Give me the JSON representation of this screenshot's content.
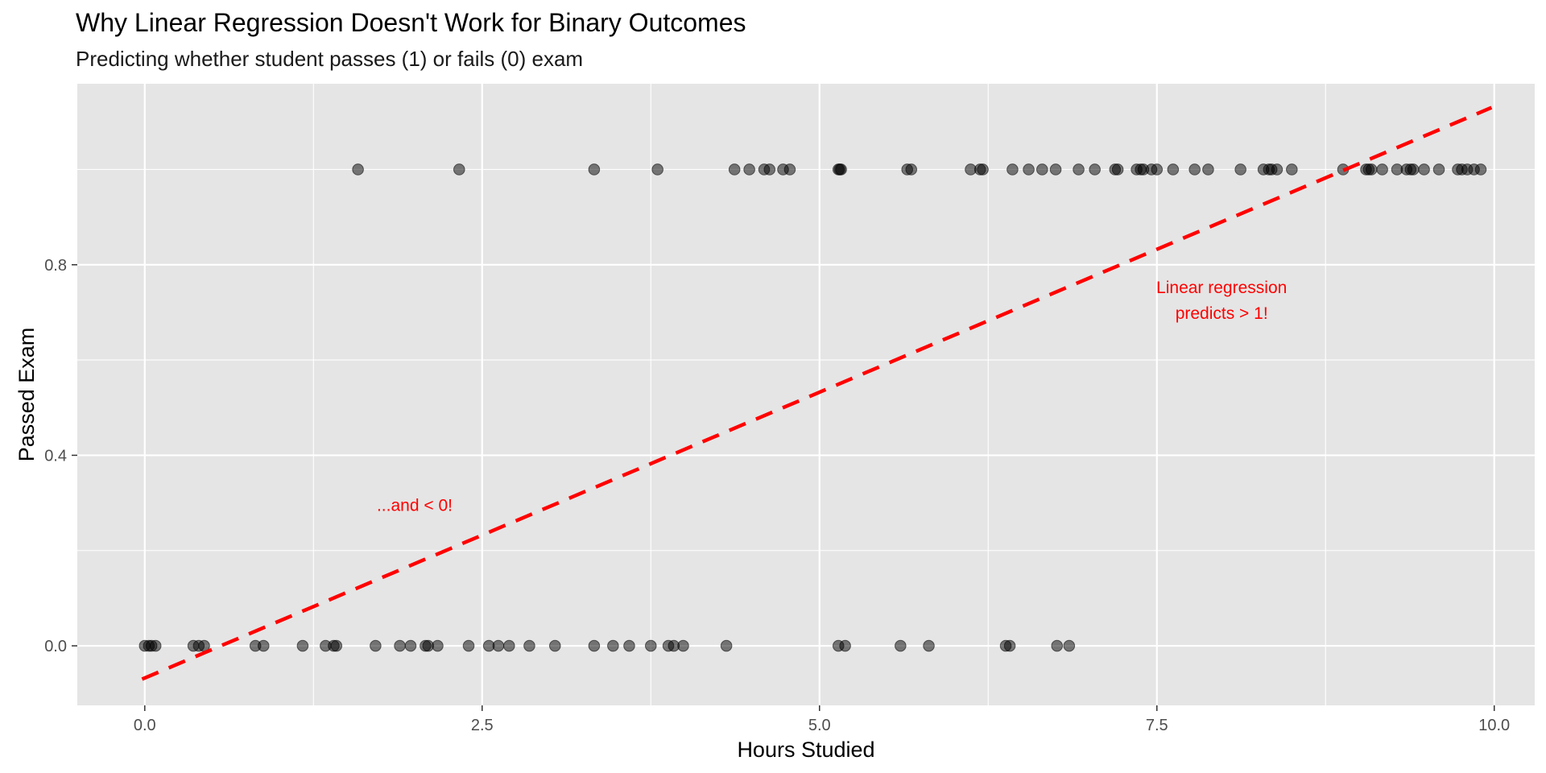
{
  "chart_data": {
    "type": "scatter",
    "title": "Why Linear Regression Doesn't Work for Binary Outcomes",
    "subtitle": "Predicting whether student passes (1) or fails (0) exam",
    "xlabel": "Hours Studied",
    "ylabel": "Passed Exam",
    "xlim": [
      -0.5,
      10.3
    ],
    "ylim": [
      -0.125,
      1.18
    ],
    "x_ticks": [
      0.0,
      2.5,
      5.0,
      7.5,
      10.0
    ],
    "x_tick_labels": [
      "0.0",
      "2.5",
      "5.0",
      "7.5",
      "10.0"
    ],
    "y_ticks": [
      0.0,
      0.4,
      0.8
    ],
    "y_tick_labels": [
      "0.0",
      "0.4",
      "0.8"
    ],
    "grid": true,
    "panel_background": "#e5e5e5",
    "point_color": "#000000",
    "point_opacity": 0.5,
    "line_color": "#ff0000",
    "points": [
      {
        "x": 1.58,
        "y": 1
      },
      {
        "x": 2.33,
        "y": 1
      },
      {
        "x": 3.33,
        "y": 1
      },
      {
        "x": 3.8,
        "y": 1
      },
      {
        "x": 4.37,
        "y": 1
      },
      {
        "x": 4.48,
        "y": 1
      },
      {
        "x": 4.59,
        "y": 1
      },
      {
        "x": 4.63,
        "y": 1
      },
      {
        "x": 4.73,
        "y": 1
      },
      {
        "x": 4.78,
        "y": 1
      },
      {
        "x": 5.14,
        "y": 1
      },
      {
        "x": 5.15,
        "y": 1
      },
      {
        "x": 5.16,
        "y": 1
      },
      {
        "x": 5.65,
        "y": 1
      },
      {
        "x": 5.68,
        "y": 1
      },
      {
        "x": 6.12,
        "y": 1
      },
      {
        "x": 6.19,
        "y": 1
      },
      {
        "x": 6.21,
        "y": 1
      },
      {
        "x": 6.43,
        "y": 1
      },
      {
        "x": 6.55,
        "y": 1
      },
      {
        "x": 6.65,
        "y": 1
      },
      {
        "x": 6.75,
        "y": 1
      },
      {
        "x": 6.92,
        "y": 1
      },
      {
        "x": 7.04,
        "y": 1
      },
      {
        "x": 7.19,
        "y": 1
      },
      {
        "x": 7.21,
        "y": 1
      },
      {
        "x": 7.35,
        "y": 1
      },
      {
        "x": 7.38,
        "y": 1
      },
      {
        "x": 7.4,
        "y": 1
      },
      {
        "x": 7.46,
        "y": 1
      },
      {
        "x": 7.5,
        "y": 1
      },
      {
        "x": 7.62,
        "y": 1
      },
      {
        "x": 7.78,
        "y": 1
      },
      {
        "x": 7.88,
        "y": 1
      },
      {
        "x": 8.12,
        "y": 1
      },
      {
        "x": 8.29,
        "y": 1
      },
      {
        "x": 8.33,
        "y": 1
      },
      {
        "x": 8.35,
        "y": 1
      },
      {
        "x": 8.39,
        "y": 1
      },
      {
        "x": 8.5,
        "y": 1
      },
      {
        "x": 8.88,
        "y": 1
      },
      {
        "x": 9.05,
        "y": 1
      },
      {
        "x": 9.07,
        "y": 1
      },
      {
        "x": 9.09,
        "y": 1
      },
      {
        "x": 9.17,
        "y": 1
      },
      {
        "x": 9.28,
        "y": 1
      },
      {
        "x": 9.35,
        "y": 1
      },
      {
        "x": 9.38,
        "y": 1
      },
      {
        "x": 9.4,
        "y": 1
      },
      {
        "x": 9.48,
        "y": 1
      },
      {
        "x": 9.59,
        "y": 1
      },
      {
        "x": 9.73,
        "y": 1
      },
      {
        "x": 9.76,
        "y": 1
      },
      {
        "x": 9.8,
        "y": 1
      },
      {
        "x": 9.85,
        "y": 1
      },
      {
        "x": 9.9,
        "y": 1
      },
      {
        "x": 0.0,
        "y": 0
      },
      {
        "x": 0.03,
        "y": 0
      },
      {
        "x": 0.05,
        "y": 0
      },
      {
        "x": 0.08,
        "y": 0
      },
      {
        "x": 0.36,
        "y": 0
      },
      {
        "x": 0.4,
        "y": 0
      },
      {
        "x": 0.44,
        "y": 0
      },
      {
        "x": 0.82,
        "y": 0
      },
      {
        "x": 0.88,
        "y": 0
      },
      {
        "x": 1.17,
        "y": 0
      },
      {
        "x": 1.34,
        "y": 0
      },
      {
        "x": 1.4,
        "y": 0
      },
      {
        "x": 1.42,
        "y": 0
      },
      {
        "x": 1.71,
        "y": 0
      },
      {
        "x": 1.89,
        "y": 0
      },
      {
        "x": 1.97,
        "y": 0
      },
      {
        "x": 2.08,
        "y": 0
      },
      {
        "x": 2.1,
        "y": 0
      },
      {
        "x": 2.17,
        "y": 0
      },
      {
        "x": 2.4,
        "y": 0
      },
      {
        "x": 2.55,
        "y": 0
      },
      {
        "x": 2.62,
        "y": 0
      },
      {
        "x": 2.7,
        "y": 0
      },
      {
        "x": 2.85,
        "y": 0
      },
      {
        "x": 3.04,
        "y": 0
      },
      {
        "x": 3.33,
        "y": 0
      },
      {
        "x": 3.47,
        "y": 0
      },
      {
        "x": 3.59,
        "y": 0
      },
      {
        "x": 3.75,
        "y": 0
      },
      {
        "x": 3.88,
        "y": 0
      },
      {
        "x": 3.92,
        "y": 0
      },
      {
        "x": 3.99,
        "y": 0
      },
      {
        "x": 4.31,
        "y": 0
      },
      {
        "x": 5.14,
        "y": 0
      },
      {
        "x": 5.19,
        "y": 0
      },
      {
        "x": 5.6,
        "y": 0
      },
      {
        "x": 5.81,
        "y": 0
      },
      {
        "x": 6.38,
        "y": 0
      },
      {
        "x": 6.41,
        "y": 0
      },
      {
        "x": 6.76,
        "y": 0
      },
      {
        "x": 6.85,
        "y": 0
      }
    ],
    "regression_line": {
      "style": "dashed",
      "start": {
        "x": -0.02,
        "y": -0.07
      },
      "end": {
        "x": 9.98,
        "y": 1.13
      }
    },
    "annotations": [
      {
        "lines": [
          "Linear regression",
          "predicts > 1!"
        ],
        "x": 7.98,
        "y": 0.725,
        "color": "#ff0000"
      },
      {
        "lines": [
          "...and < 0!"
        ],
        "x": 2.0,
        "y": 0.295,
        "color": "#ff0000"
      }
    ]
  }
}
